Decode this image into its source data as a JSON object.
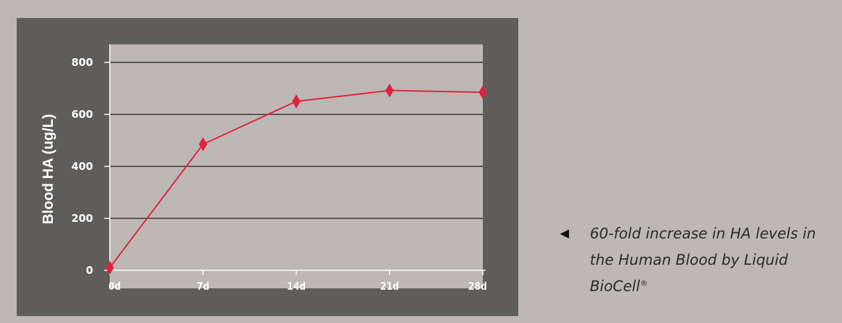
{
  "chart_data": {
    "type": "line",
    "categories": [
      "0d",
      "7d",
      "14d",
      "21d",
      "28d"
    ],
    "series": [
      {
        "values": [
          10,
          485,
          650,
          692,
          685
        ],
        "color": "#e0223c",
        "marker": "diamond"
      }
    ],
    "ylabel": "Blood HA (ug/L)",
    "xlabel": "",
    "ylim": [
      0,
      800
    ],
    "yticks": [
      0,
      200,
      400,
      600,
      800
    ],
    "grid": true,
    "colors": {
      "panel": "#5f5d5b",
      "plot_area": "#bdb8b6",
      "gridline": "#1a1a1a",
      "line": "#e0223c"
    }
  },
  "caption": {
    "bullet_icon": "left-triangle-icon",
    "bullet": "◀",
    "text": "60-fold increase in HA levels in the Human Blood by Liquid BioCell",
    "registered": "®"
  }
}
